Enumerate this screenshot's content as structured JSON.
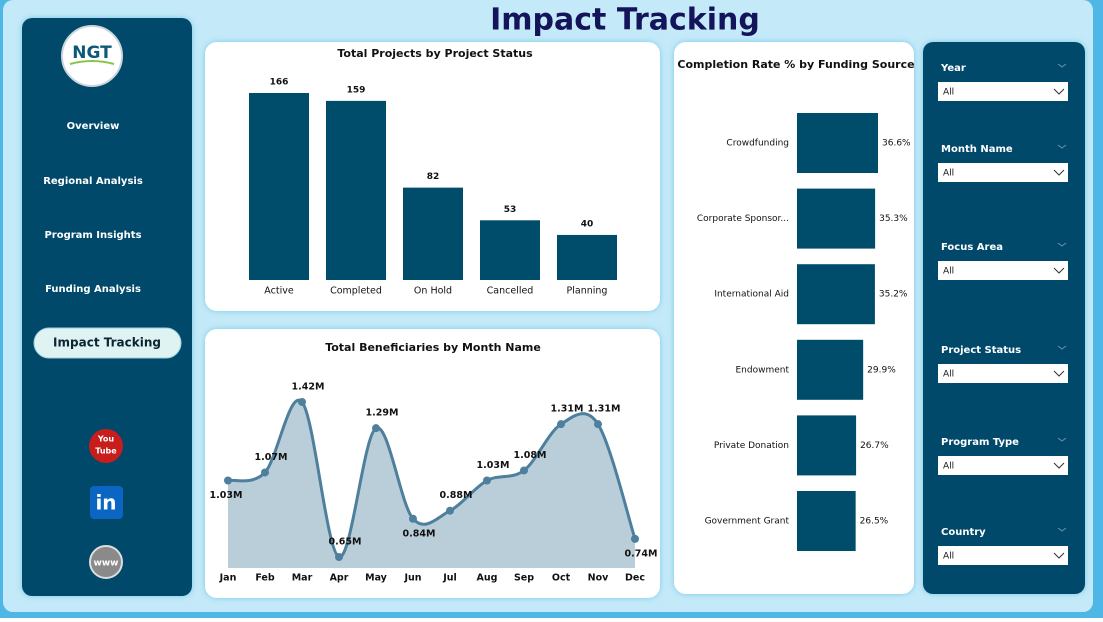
{
  "header": {
    "title": "Impact Tracking"
  },
  "nav": {
    "logo": "NGT",
    "items": [
      "Overview",
      "Regional Analysis",
      "Program Insights",
      "Funding Analysis",
      "Impact Tracking"
    ],
    "active": 4,
    "icons": {
      "youtube": [
        "You",
        "Tube"
      ],
      "linkedin": "in",
      "web": "www"
    }
  },
  "filters": [
    {
      "label": "Year",
      "value": "All"
    },
    {
      "label": "Month Name",
      "value": "All"
    },
    {
      "label": "Focus Area",
      "value": "All"
    },
    {
      "label": "Project Status",
      "value": "All"
    },
    {
      "label": "Program Type",
      "value": "All"
    },
    {
      "label": "Country",
      "value": "All"
    }
  ],
  "chart_data": [
    {
      "type": "bar",
      "title": "Total Projects by Project Status",
      "categories": [
        "Active",
        "Completed",
        "On Hold",
        "Cancelled",
        "Planning"
      ],
      "values": [
        166,
        159,
        82,
        53,
        40
      ],
      "color": "#004d6b"
    },
    {
      "type": "area",
      "title": "Total Beneficiaries by Month Name",
      "categories": [
        "Jan",
        "Feb",
        "Mar",
        "Apr",
        "May",
        "Jun",
        "Jul",
        "Aug",
        "Sep",
        "Oct",
        "Nov",
        "Dec"
      ],
      "values": [
        1030000,
        1070000,
        1420000,
        650000,
        1290000,
        840000,
        880000,
        1030000,
        1080000,
        1310000,
        1310000,
        740000
      ],
      "value_labels": [
        "1.03M",
        "1.07M",
        "1.42M",
        "0.65M",
        "1.29M",
        "0.84M",
        "0.88M",
        "1.03M",
        "1.08M",
        "1.31M",
        "1.31M",
        "0.74M"
      ],
      "color": "#4e7f9c",
      "fill": "#b9ced8"
    },
    {
      "type": "barh",
      "title": "Completion Rate % by Funding Source",
      "categories": [
        "Crowdfunding",
        "Corporate Sponsor...",
        "International Aid",
        "Endowment",
        "Private Donation",
        "Government Grant"
      ],
      "values": [
        36.6,
        35.3,
        35.2,
        29.9,
        26.7,
        26.5
      ],
      "value_labels": [
        "36.6%",
        "35.3%",
        "35.2%",
        "29.9%",
        "26.7%",
        "26.5%"
      ],
      "color": "#004d6b"
    }
  ]
}
